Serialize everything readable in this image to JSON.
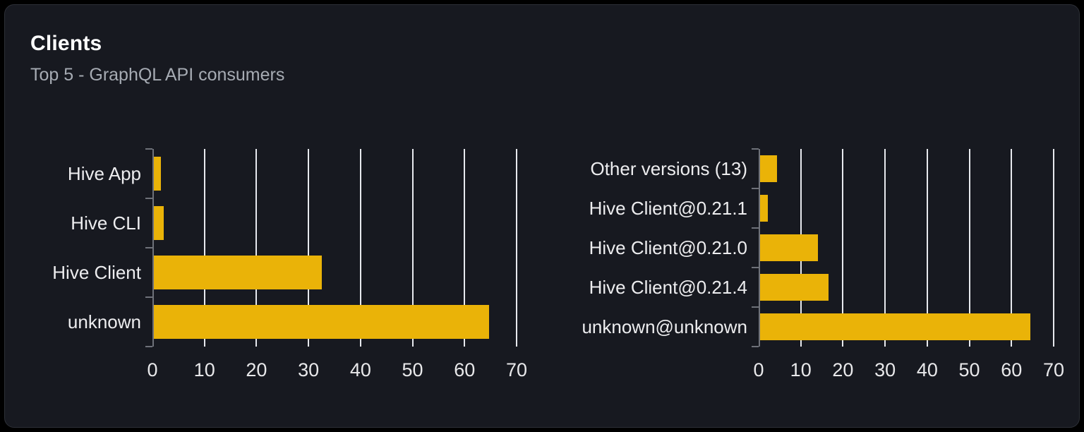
{
  "card": {
    "title": "Clients",
    "subtitle": "Top 5 - GraphQL API consumers"
  },
  "colors": {
    "bar": "#eab308",
    "page_bg": "#000000",
    "card_bg": "#171920",
    "card_border": "#2c2f36",
    "gridline": "#e7e9ee",
    "axis": "#6e7179",
    "title_text": "#ffffff",
    "subtitle_text": "#a6abb3",
    "label_text": "#ededef"
  },
  "chart_data": [
    {
      "type": "bar",
      "orientation": "horizontal",
      "categories": [
        "Hive App",
        "Hive CLI",
        "Hive Client",
        "unknown"
      ],
      "values": [
        1.3,
        1.9,
        32.3,
        64.4
      ],
      "xticks": [
        0,
        10,
        20,
        30,
        40,
        50,
        60,
        70
      ],
      "xmax": 70,
      "bar_color": "#eab308",
      "grid": "vertical-only",
      "legend": "none"
    },
    {
      "type": "bar",
      "orientation": "horizontal",
      "categories": [
        "Other versions (13)",
        "Hive Client@0.21.1",
        "Hive Client@0.21.0",
        "Hive Client@0.21.4",
        "unknown@unknown"
      ],
      "values": [
        4.0,
        1.8,
        13.7,
        16.3,
        64.2
      ],
      "xticks": [
        0,
        10,
        20,
        30,
        40,
        50,
        60,
        70
      ],
      "xmax": 70,
      "bar_color": "#eab308",
      "grid": "vertical-only",
      "legend": "none"
    }
  ]
}
